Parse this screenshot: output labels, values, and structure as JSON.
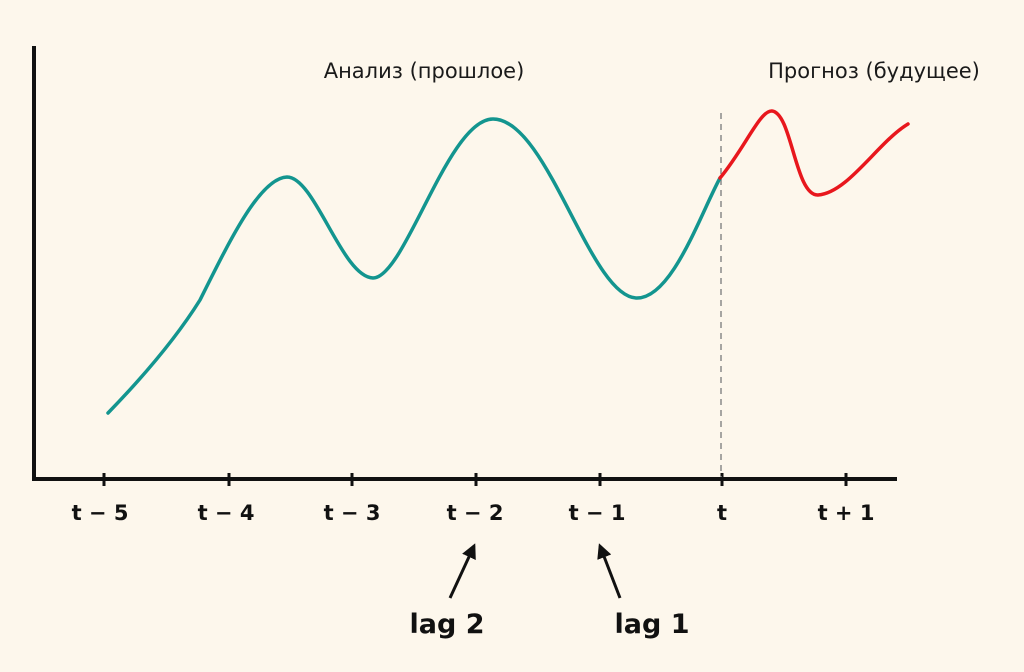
{
  "region_labels": {
    "past": "Анализ (прошлое)",
    "future": "Прогноз (будущее)"
  },
  "ticks": [
    "t − 5",
    "t − 4",
    "t − 3",
    "t − 2",
    "t − 1",
    "t",
    "t + 1"
  ],
  "lags": [
    {
      "label": "lag 2",
      "tick": "t − 2"
    },
    {
      "label": "lag 1",
      "tick": "t − 1"
    }
  ],
  "colors": {
    "background": "#fdf7ec",
    "past_curve": "#13958f",
    "forecast_curve": "#e8171d",
    "divider": "#8a8a8a",
    "axis": "#111111"
  }
}
